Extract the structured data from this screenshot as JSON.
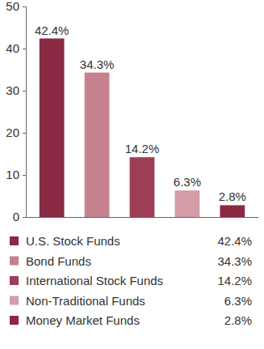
{
  "chart_data": {
    "type": "bar",
    "categories": [
      "U.S. Stock Funds",
      "Bond Funds",
      "International Stock Funds",
      "Non-Traditional Funds",
      "Money Market Funds"
    ],
    "values": [
      42.4,
      34.3,
      14.2,
      6.3,
      2.8
    ],
    "value_labels": [
      "42.4%",
      "34.3%",
      "14.2%",
      "6.3%",
      "2.8%"
    ],
    "colors": [
      "#8a2944",
      "#c5818e",
      "#9e3d55",
      "#d59ba6",
      "#8a2944"
    ],
    "ylim": [
      0,
      50
    ],
    "yticks": [
      0,
      10,
      20,
      30,
      40,
      50
    ],
    "grid": false,
    "data_labels": true,
    "tick_labels": "y",
    "legend": "bottom"
  }
}
